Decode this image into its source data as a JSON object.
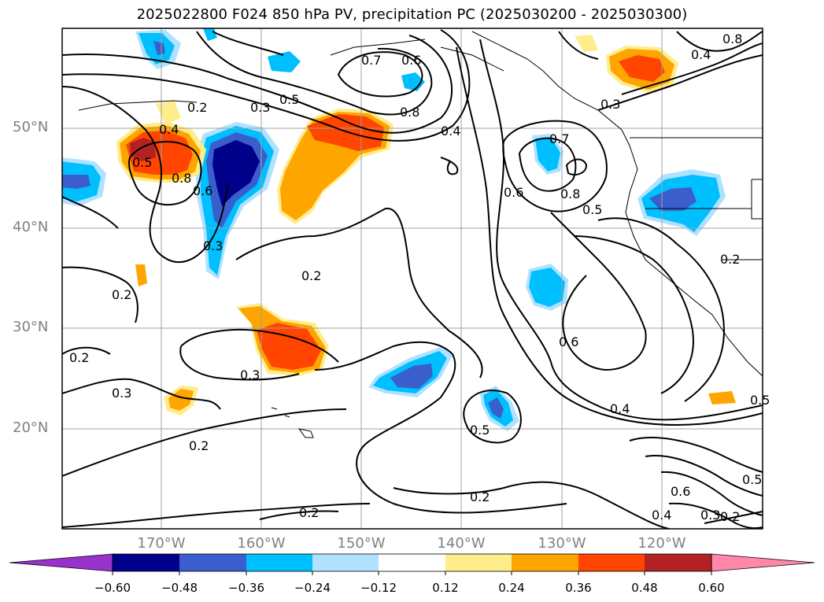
{
  "title": "2025022800 F024 850 hPa PV, precipitation PC (2025030200 - 2025030300)",
  "lat_labels": [
    "50°N",
    "40°N",
    "30°N",
    "20°N"
  ],
  "lon_labels": [
    "170°W",
    "160°W",
    "150°W",
    "140°W",
    "130°W",
    "120°W"
  ],
  "contour_labels": [
    "0.7",
    "0.6",
    "0.5",
    "0.2",
    "0.3",
    "0.4",
    "0.8",
    "0.5",
    "0.8",
    "0.6",
    "0.3",
    "0.2",
    "0.2",
    "0.3",
    "0.2",
    "0.3",
    "0.4",
    "0.7",
    "0.6",
    "0.8",
    "0.5",
    "0.6",
    "0.4",
    "0.5",
    "0.2",
    "0.2",
    "0.2",
    "0.6",
    "0.4",
    "0.3",
    "0.2",
    "0.5",
    "0.3",
    "0.4",
    "0.8",
    "0.2",
    "0.5"
  ],
  "colorbar": {
    "ticks": [
      "−0.60",
      "−0.48",
      "−0.36",
      "−0.24",
      "−0.12",
      "0.12",
      "0.24",
      "0.36",
      "0.48",
      "0.60"
    ],
    "colors": [
      "#9932cc",
      "#00008b",
      "#3a5fcd",
      "#00bfff",
      "#b0e2ff",
      "#ffffff",
      "#ffec8b",
      "#ffa500",
      "#ff4500",
      "#b22222",
      "#ff88aa"
    ]
  },
  "colors": {
    "contour": "#000000",
    "grid": "#a0a0a0",
    "axis_label": "#808080"
  }
}
